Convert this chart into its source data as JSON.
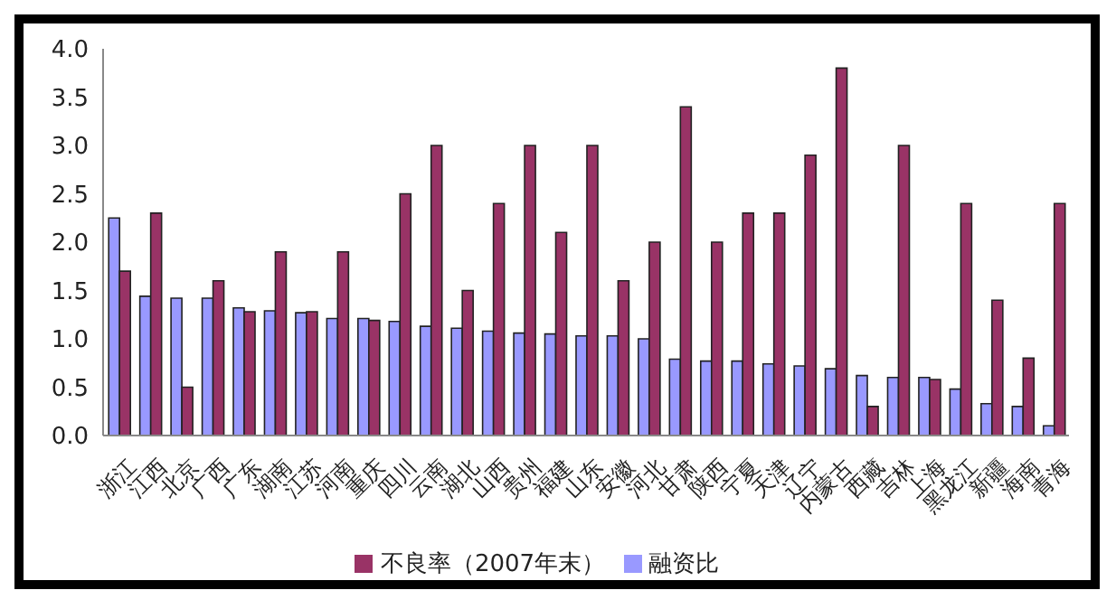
{
  "chart_data": {
    "type": "bar",
    "categories": [
      "浙江",
      "江西",
      "北京",
      "广西",
      "广东",
      "湖南",
      "江苏",
      "河南",
      "重庆",
      "四川",
      "云南",
      "湖北",
      "山西",
      "贵州",
      "福建",
      "山东",
      "安徽",
      "河北",
      "甘肃",
      "陕西",
      "宁夏",
      "天津",
      "辽宁",
      "内蒙古",
      "西藏",
      "吉林",
      "上海",
      "黑龙江",
      "新疆",
      "海南",
      "青海"
    ],
    "series": [
      {
        "name": "融资比",
        "color": "#9999ff",
        "values": [
          2.25,
          1.44,
          1.42,
          1.42,
          1.32,
          1.29,
          1.27,
          1.21,
          1.21,
          1.18,
          1.13,
          1.11,
          1.08,
          1.06,
          1.05,
          1.03,
          1.03,
          1.0,
          0.79,
          0.77,
          0.77,
          0.74,
          0.72,
          0.69,
          0.62,
          0.6,
          0.6,
          0.48,
          0.33,
          0.3,
          0.1
        ]
      },
      {
        "name": "不良率（2007年末）",
        "color": "#993366",
        "values": [
          1.7,
          2.3,
          0.5,
          1.6,
          1.28,
          1.9,
          1.28,
          1.9,
          1.19,
          2.5,
          3.0,
          1.5,
          2.4,
          3.0,
          2.1,
          3.0,
          1.6,
          2.0,
          3.4,
          2.0,
          2.3,
          2.3,
          2.9,
          3.8,
          0.3,
          3.0,
          0.58,
          2.4,
          1.4,
          0.8,
          2.4
        ]
      }
    ],
    "ylim": [
      0,
      4
    ],
    "yticks": [
      {
        "value": 0,
        "label": "0.0"
      },
      {
        "value": 0.5,
        "label": "0.5"
      },
      {
        "value": 1,
        "label": "1.0"
      },
      {
        "value": 1.5,
        "label": "1.5"
      },
      {
        "value": 2,
        "label": "2.0"
      },
      {
        "value": 2.5,
        "label": "2.5"
      },
      {
        "value": 3,
        "label": "3.0"
      },
      {
        "value": 3.5,
        "label": "3.5"
      },
      {
        "value": 4,
        "label": "4.0"
      }
    ],
    "grid": false,
    "legend": "bottom"
  }
}
